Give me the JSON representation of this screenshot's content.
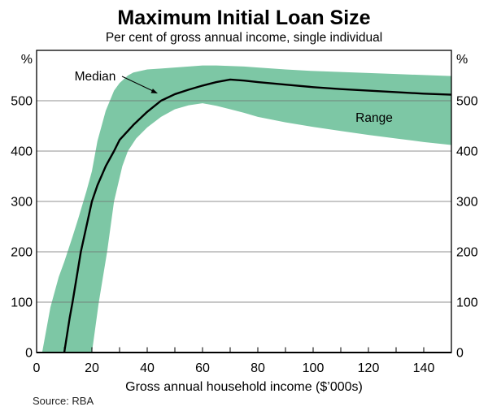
{
  "page": {
    "title": "Maximum Initial Loan Size",
    "subtitle": "Per cent of gross annual income, single individual",
    "source": "Source: RBA"
  },
  "axes": {
    "y_unit_left": "%",
    "y_unit_right": "%",
    "x_label": "Gross annual household income ($’000s)"
  },
  "annotations": {
    "median": "Median",
    "range": "Range"
  },
  "colors": {
    "band": "#7dc7a5",
    "median_line": "#000000",
    "grid": "#6e6e6e",
    "axis": "#000000"
  },
  "chart_data": {
    "type": "line",
    "title": "Maximum Initial Loan Size",
    "subtitle": "Per cent of gross annual income, single individual",
    "xlabel": "Gross annual household income ($’000s)",
    "ylabel": "%",
    "xlim": [
      0,
      150
    ],
    "ylim": [
      0,
      600
    ],
    "xticks": [
      0,
      20,
      40,
      60,
      80,
      100,
      120,
      140
    ],
    "xtick_minor_step": 10,
    "yticks": [
      0,
      100,
      200,
      300,
      400,
      500
    ],
    "grid": "horizontal",
    "legend": "none",
    "series": [
      {
        "name": "Range",
        "type": "band",
        "color": "#7dc7a5",
        "points_upper": [
          [
            2,
            0
          ],
          [
            5,
            90
          ],
          [
            8,
            150
          ],
          [
            10,
            180
          ],
          [
            13,
            230
          ],
          [
            15,
            265
          ],
          [
            18,
            320
          ],
          [
            20,
            360
          ],
          [
            22,
            420
          ],
          [
            25,
            480
          ],
          [
            28,
            520
          ],
          [
            30,
            535
          ],
          [
            33,
            550
          ],
          [
            35,
            556
          ],
          [
            40,
            562
          ],
          [
            45,
            564
          ],
          [
            50,
            566
          ],
          [
            55,
            568
          ],
          [
            60,
            570
          ],
          [
            65,
            570
          ],
          [
            70,
            569
          ],
          [
            75,
            568
          ],
          [
            80,
            566
          ],
          [
            90,
            562
          ],
          [
            100,
            559
          ],
          [
            110,
            557
          ],
          [
            120,
            555
          ],
          [
            130,
            553
          ],
          [
            140,
            551
          ],
          [
            150,
            549
          ]
        ],
        "points_lower": [
          [
            20,
            0
          ],
          [
            22.5,
            100
          ],
          [
            25.5,
            200
          ],
          [
            28,
            300
          ],
          [
            31,
            370
          ],
          [
            33,
            400
          ],
          [
            36,
            425
          ],
          [
            40,
            447
          ],
          [
            45,
            468
          ],
          [
            50,
            483
          ],
          [
            55,
            491
          ],
          [
            60,
            495
          ],
          [
            65,
            490
          ],
          [
            70,
            483
          ],
          [
            75,
            476
          ],
          [
            80,
            468
          ],
          [
            90,
            457
          ],
          [
            100,
            448
          ],
          [
            110,
            440
          ],
          [
            120,
            432
          ],
          [
            130,
            425
          ],
          [
            140,
            418
          ],
          [
            150,
            412
          ]
        ]
      },
      {
        "name": "Median",
        "type": "line",
        "color": "#000000",
        "points": [
          [
            10,
            0
          ],
          [
            12,
            70
          ],
          [
            13,
            100
          ],
          [
            14.5,
            150
          ],
          [
            16,
            200
          ],
          [
            18,
            250
          ],
          [
            20,
            300
          ],
          [
            22,
            332
          ],
          [
            25,
            370
          ],
          [
            28,
            400
          ],
          [
            30,
            422
          ],
          [
            35,
            452
          ],
          [
            40,
            478
          ],
          [
            45,
            500
          ],
          [
            50,
            513
          ],
          [
            55,
            522
          ],
          [
            60,
            530
          ],
          [
            65,
            537
          ],
          [
            70,
            542
          ],
          [
            75,
            540
          ],
          [
            80,
            537
          ],
          [
            90,
            532
          ],
          [
            100,
            527
          ],
          [
            110,
            523
          ],
          [
            120,
            520
          ],
          [
            130,
            517
          ],
          [
            140,
            514
          ],
          [
            150,
            512
          ]
        ]
      }
    ]
  }
}
